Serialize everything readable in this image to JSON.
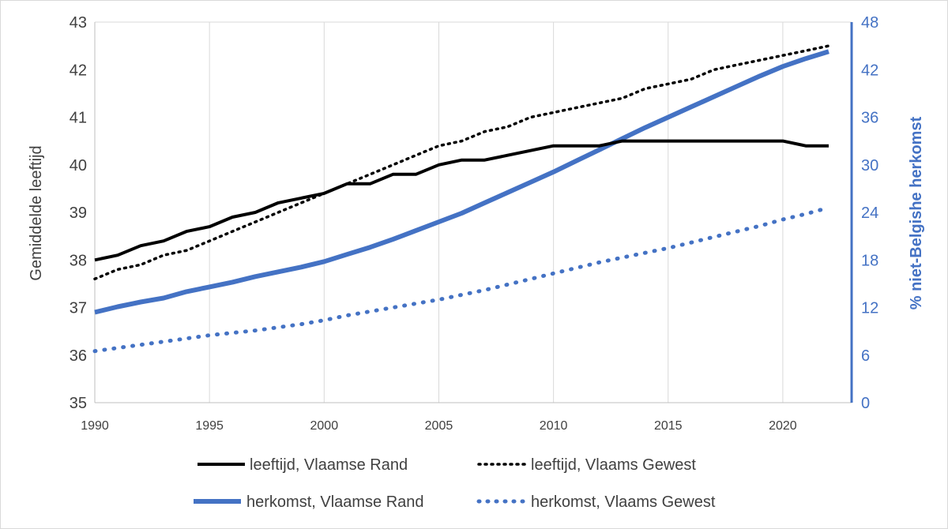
{
  "chart_data": {
    "type": "line",
    "title": "",
    "x": [
      1990,
      1991,
      1992,
      1993,
      1994,
      1995,
      1996,
      1997,
      1998,
      1999,
      2000,
      2001,
      2002,
      2003,
      2004,
      2005,
      2006,
      2007,
      2008,
      2009,
      2010,
      2011,
      2012,
      2013,
      2014,
      2015,
      2016,
      2017,
      2018,
      2019,
      2020,
      2021,
      2022
    ],
    "xlabel": "",
    "xlim": [
      1990,
      2023
    ],
    "x_ticks": [
      1990,
      1995,
      2000,
      2005,
      2010,
      2015,
      2020
    ],
    "ylabel_left": "Gemiddelde leeftijd",
    "ylim_left": [
      35,
      43
    ],
    "y_ticks_left": [
      35,
      36,
      37,
      38,
      39,
      40,
      41,
      42,
      43
    ],
    "ylabel_right": "% niet-Belgishe herkomst",
    "ylim_right": [
      0,
      48
    ],
    "y_ticks_right": [
      0,
      6,
      12,
      18,
      24,
      30,
      36,
      42,
      48
    ],
    "grid": "vertical",
    "legend_position": "bottom",
    "series": [
      {
        "name": "leeftijd, Vlaamse Rand",
        "axis": "left",
        "style": "solid",
        "color": "#000000",
        "values": [
          38.0,
          38.1,
          38.3,
          38.4,
          38.6,
          38.7,
          38.9,
          39.0,
          39.2,
          39.3,
          39.4,
          39.6,
          39.6,
          39.8,
          39.8,
          40.0,
          40.1,
          40.1,
          40.2,
          40.3,
          40.4,
          40.4,
          40.4,
          40.5,
          40.5,
          40.5,
          40.5,
          40.5,
          40.5,
          40.5,
          40.5,
          40.4,
          40.4
        ]
      },
      {
        "name": "leeftijd, Vlaams Gewest",
        "axis": "left",
        "style": "dotted",
        "color": "#000000",
        "values": [
          37.6,
          37.8,
          37.9,
          38.1,
          38.2,
          38.4,
          38.6,
          38.8,
          39.0,
          39.2,
          39.4,
          39.6,
          39.8,
          40.0,
          40.2,
          40.4,
          40.5,
          40.7,
          40.8,
          41.0,
          41.1,
          41.2,
          41.3,
          41.4,
          41.6,
          41.7,
          41.8,
          42.0,
          42.1,
          42.2,
          42.3,
          42.4,
          42.5
        ]
      },
      {
        "name": "herkomst, Vlaamse Rand",
        "axis": "right",
        "style": "solid",
        "color": "#4472c4",
        "values": [
          11.4,
          12.1,
          12.7,
          13.2,
          14.0,
          14.6,
          15.2,
          15.9,
          16.5,
          17.1,
          17.8,
          18.7,
          19.6,
          20.6,
          21.7,
          22.8,
          23.9,
          25.2,
          26.5,
          27.8,
          29.1,
          30.5,
          31.9,
          33.3,
          34.7,
          36.0,
          37.3,
          38.6,
          39.9,
          41.2,
          42.4,
          43.4,
          44.3
        ]
      },
      {
        "name": "herkomst, Vlaams Gewest",
        "axis": "right",
        "style": "dotted",
        "color": "#4472c4",
        "values": [
          6.5,
          6.9,
          7.3,
          7.7,
          8.1,
          8.5,
          8.8,
          9.1,
          9.5,
          9.9,
          10.4,
          11.0,
          11.5,
          12.0,
          12.5,
          13.0,
          13.6,
          14.2,
          14.9,
          15.6,
          16.3,
          17.0,
          17.7,
          18.3,
          18.9,
          19.5,
          20.2,
          20.9,
          21.6,
          22.3,
          23.1,
          23.8,
          24.6
        ]
      }
    ]
  }
}
